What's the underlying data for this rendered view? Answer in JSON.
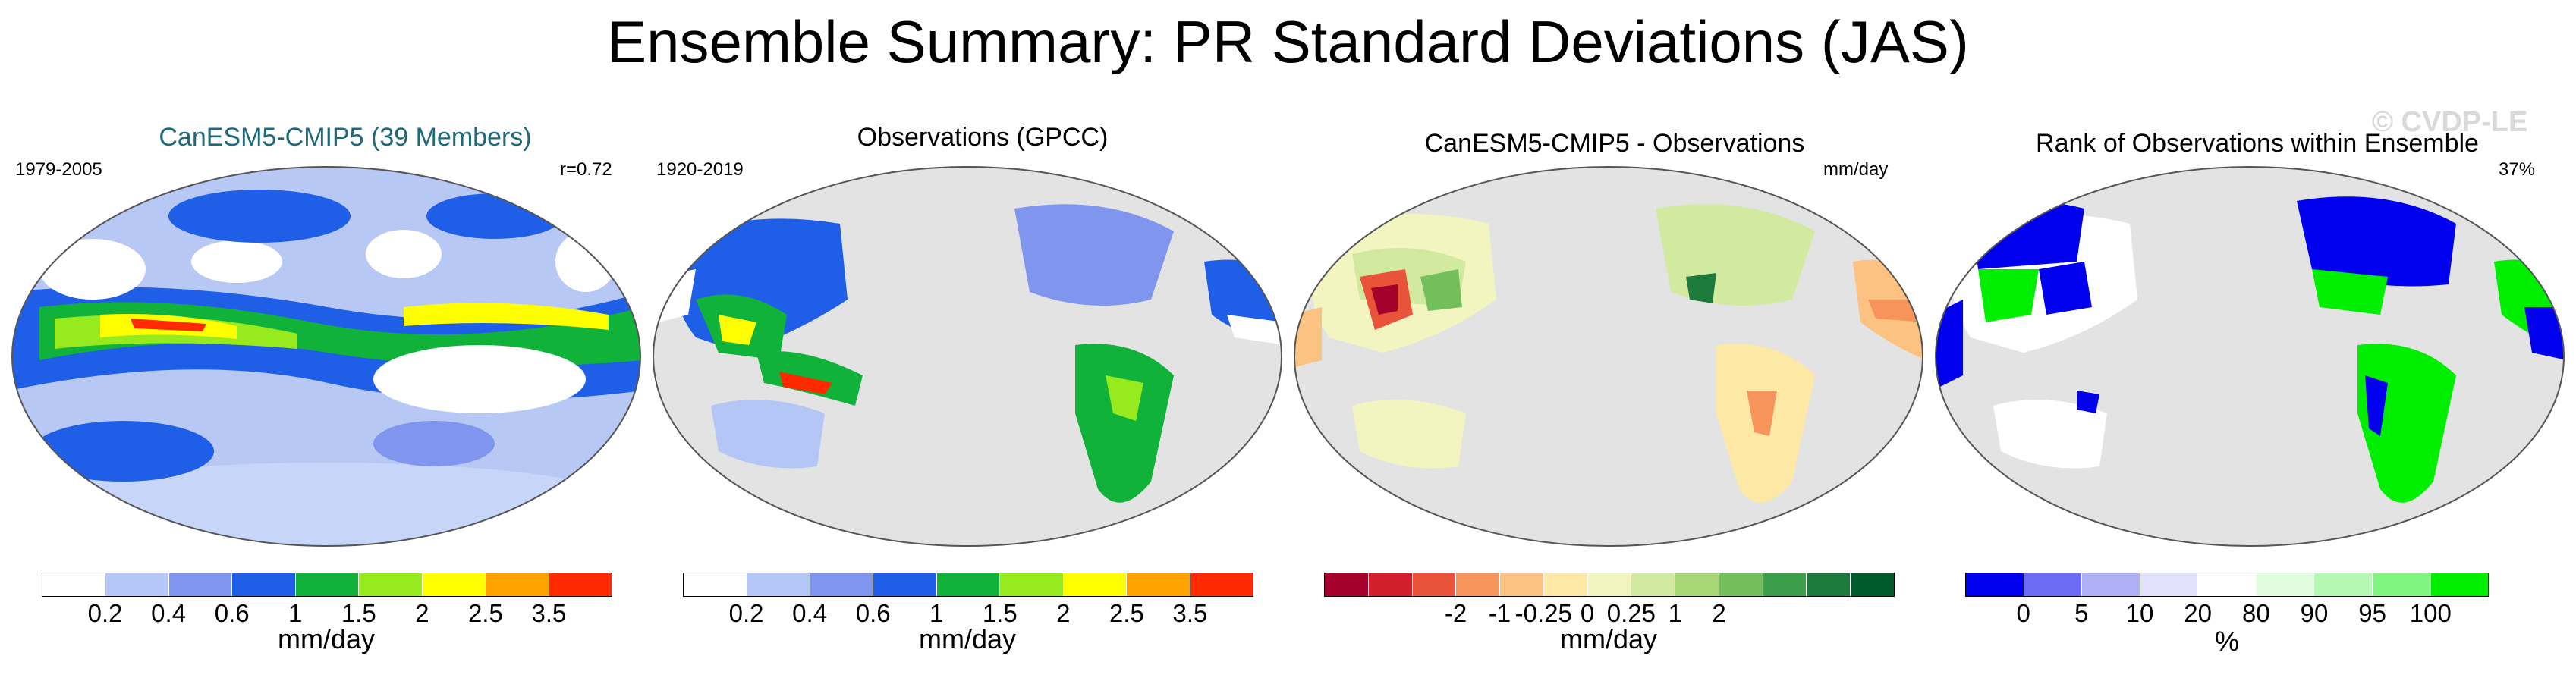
{
  "title": "Ensemble Summary: PR Standard Deviations (JAS)",
  "watermark": "© CVDP-LE",
  "panels": [
    {
      "title": "CanESM5-CMIP5 (39 Members)",
      "title_color": "#1f6a7a",
      "left_label": "1979-2005",
      "right_label": "r=0.72",
      "map_background": "#b7c8f5",
      "units": "mm/day",
      "colorbar": [
        "#ffffff",
        "#b4c6f5",
        "#7f95ee",
        "#1f5fe8",
        "#10b23a",
        "#96ea1e",
        "#ffff00",
        "#ffa200",
        "#ff2a00"
      ],
      "ticks": [
        "0.2",
        "0.4",
        "0.6",
        "1",
        "1.5",
        "2",
        "2.5",
        "3.5"
      ]
    },
    {
      "title": "Observations (GPCC)",
      "title_color": "#000000",
      "left_label": "1920-2019",
      "right_label": "",
      "map_background": "#e3e3e3",
      "units": "mm/day",
      "colorbar": [
        "#ffffff",
        "#b4c6f5",
        "#7f95ee",
        "#1f5fe8",
        "#10b23a",
        "#96ea1e",
        "#ffff00",
        "#ffa200",
        "#ff2a00"
      ],
      "ticks": [
        "0.2",
        "0.4",
        "0.6",
        "1",
        "1.5",
        "2",
        "2.5",
        "3.5"
      ]
    },
    {
      "title": "CanESM5-CMIP5 - Observations",
      "title_color": "#000000",
      "left_label": "",
      "right_label": "mm/day",
      "map_background": "#e3e3e3",
      "units": "mm/day",
      "colorbar": [
        "#a3002c",
        "#d21f2c",
        "#e9533a",
        "#f7945c",
        "#fbc281",
        "#fde8a6",
        "#f2f5c0",
        "#d2eaa0",
        "#a7d777",
        "#72bf5c",
        "#3a9e4b",
        "#1b7a3c",
        "#005b2c"
      ],
      "ticks": [
        "-2",
        "-1",
        "-0.25",
        "0",
        "0.25",
        "1",
        "2"
      ]
    },
    {
      "title": "Rank of Observations within Ensemble",
      "title_color": "#000000",
      "left_label": "",
      "right_label": "37%",
      "map_background": "#e3e3e3",
      "units": "%",
      "colorbar": [
        "#0000ee",
        "#6b6bf5",
        "#b0b0f7",
        "#e1e1fb",
        "#ffffff",
        "#e0fde0",
        "#b4f8b4",
        "#80f580",
        "#00ee00"
      ],
      "ticks": [
        "0",
        "5",
        "10",
        "20",
        "80",
        "90",
        "95",
        "100"
      ]
    }
  ]
}
